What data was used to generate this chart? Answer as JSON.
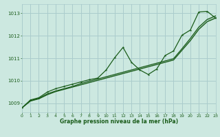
{
  "title": "Graphe pression niveau de la mer (hPa)",
  "bg_color": "#cce8e0",
  "grid_color": "#aacccc",
  "line_color": "#1a5c1a",
  "x_min": 0,
  "x_max": 23,
  "y_min": 1008.6,
  "y_max": 1013.4,
  "y_ticks": [
    1009,
    1010,
    1011,
    1012,
    1013
  ],
  "x_ticks": [
    0,
    1,
    2,
    3,
    4,
    5,
    6,
    7,
    8,
    9,
    10,
    11,
    12,
    13,
    14,
    15,
    16,
    17,
    18,
    19,
    20,
    21,
    22,
    23
  ],
  "series1": [
    1008.8,
    1009.15,
    1009.25,
    1009.5,
    1009.65,
    1009.75,
    1009.85,
    1009.95,
    1010.05,
    1010.12,
    1010.48,
    1011.02,
    1011.48,
    1010.82,
    1010.48,
    1010.28,
    1010.52,
    1011.12,
    1011.32,
    1012.02,
    1012.25,
    1013.05,
    1013.08,
    1012.78
  ],
  "series2": [
    1008.8,
    1009.12,
    1009.22,
    1009.42,
    1009.55,
    1009.65,
    1009.75,
    1009.88,
    1009.98,
    1010.08,
    1010.18,
    1010.28,
    1010.38,
    1010.48,
    1010.58,
    1010.68,
    1010.78,
    1010.88,
    1010.98,
    1011.42,
    1011.88,
    1012.38,
    1012.72,
    1012.88
  ],
  "series3": [
    1008.8,
    1009.1,
    1009.2,
    1009.38,
    1009.52,
    1009.62,
    1009.72,
    1009.82,
    1009.92,
    1010.02,
    1010.12,
    1010.22,
    1010.32,
    1010.42,
    1010.52,
    1010.62,
    1010.72,
    1010.82,
    1010.92,
    1011.35,
    1011.78,
    1012.28,
    1012.62,
    1012.78
  ]
}
